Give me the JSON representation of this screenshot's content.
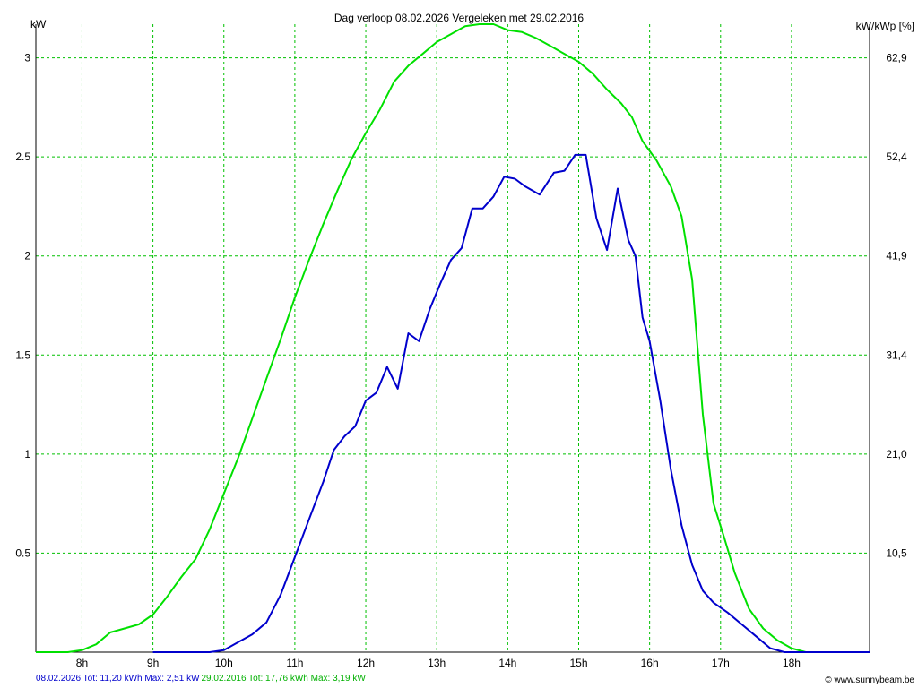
{
  "chart_data": {
    "type": "line",
    "title": "Dag  verloop 08.02.2026   Vergeleken met 29.02.2016",
    "ylabel_left": "kW",
    "ylabel_right": "kW/kWp [%]",
    "ylim": [
      0,
      3.17
    ],
    "xlim": [
      7.35,
      19.1
    ],
    "y_ticks": [
      {
        "value": 0.5,
        "label": "0.5"
      },
      {
        "value": 1,
        "label": "1"
      },
      {
        "value": 1.5,
        "label": "1.5"
      },
      {
        "value": 2,
        "label": "2"
      },
      {
        "value": 2.5,
        "label": "2.5"
      },
      {
        "value": 3,
        "label": "3"
      }
    ],
    "y2_ticks": [
      {
        "value": 0.5,
        "label": "10,5"
      },
      {
        "value": 1,
        "label": "21,0"
      },
      {
        "value": 1.5,
        "label": "31,4"
      },
      {
        "value": 2,
        "label": "41,9"
      },
      {
        "value": 2.5,
        "label": "52,4"
      },
      {
        "value": 3,
        "label": "62,9"
      }
    ],
    "x_ticks": [
      {
        "value": 8,
        "label": "8h"
      },
      {
        "value": 9,
        "label": "9h"
      },
      {
        "value": 10,
        "label": "10h"
      },
      {
        "value": 11,
        "label": "11h"
      },
      {
        "value": 12,
        "label": "12h"
      },
      {
        "value": 13,
        "label": "13h"
      },
      {
        "value": 14,
        "label": "14h"
      },
      {
        "value": 15,
        "label": "15h"
      },
      {
        "value": 16,
        "label": "16h"
      },
      {
        "value": 17,
        "label": "17h"
      },
      {
        "value": 18,
        "label": "18h"
      }
    ],
    "grid": true,
    "series": [
      {
        "color": "#00e000",
        "caption": "29.02.2016 Tot: 17,76 kWh Max: 3,19 kW",
        "x": [
          7.35,
          7.6,
          7.8,
          8.0,
          8.2,
          8.4,
          8.6,
          8.8,
          9.0,
          9.2,
          9.4,
          9.6,
          9.8,
          10.0,
          10.2,
          10.4,
          10.6,
          10.8,
          11.0,
          11.2,
          11.4,
          11.6,
          11.8,
          12.0,
          12.2,
          12.4,
          12.6,
          12.8,
          13.0,
          13.2,
          13.4,
          13.6,
          13.8,
          14.0,
          14.2,
          14.4,
          14.6,
          14.8,
          15.0,
          15.2,
          15.4,
          15.6,
          15.75,
          15.9,
          16.1,
          16.3,
          16.45,
          16.6,
          16.75,
          16.9,
          17.05,
          17.2,
          17.4,
          17.6,
          17.8,
          18.0,
          18.2,
          18.4,
          18.6,
          18.8,
          19.1
        ],
        "y": [
          0,
          0,
          0,
          0.01,
          0.04,
          0.1,
          0.12,
          0.14,
          0.19,
          0.28,
          0.38,
          0.47,
          0.62,
          0.8,
          0.98,
          1.18,
          1.38,
          1.58,
          1.79,
          1.98,
          2.16,
          2.33,
          2.49,
          2.62,
          2.74,
          2.88,
          2.96,
          3.02,
          3.08,
          3.12,
          3.16,
          3.17,
          3.17,
          3.14,
          3.13,
          3.1,
          3.06,
          3.02,
          2.98,
          2.92,
          2.84,
          2.77,
          2.7,
          2.58,
          2.48,
          2.35,
          2.2,
          1.88,
          1.2,
          0.75,
          0.58,
          0.4,
          0.22,
          0.12,
          0.06,
          0.02,
          0,
          0,
          0,
          0,
          0
        ]
      },
      {
        "color": "#0000cc",
        "caption": "08.02.2026 Tot: 11,20 kWh Max: 2,51 kW",
        "x": [
          9.0,
          9.2,
          9.4,
          9.6,
          9.8,
          10.0,
          10.2,
          10.4,
          10.6,
          10.8,
          11.0,
          11.2,
          11.4,
          11.55,
          11.7,
          11.85,
          12.0,
          12.15,
          12.3,
          12.45,
          12.6,
          12.75,
          12.9,
          13.05,
          13.2,
          13.35,
          13.5,
          13.65,
          13.8,
          13.95,
          14.1,
          14.25,
          14.45,
          14.65,
          14.8,
          14.95,
          15.1,
          15.25,
          15.4,
          15.55,
          15.7,
          15.8,
          15.9,
          16.0,
          16.15,
          16.3,
          16.45,
          16.6,
          16.75,
          16.9,
          17.1,
          17.3,
          17.5,
          17.7,
          17.9,
          18.1,
          18.3,
          18.5,
          18.7,
          19.1
        ],
        "y": [
          0,
          0,
          0,
          0,
          0,
          0.01,
          0.05,
          0.09,
          0.15,
          0.29,
          0.48,
          0.67,
          0.86,
          1.02,
          1.09,
          1.14,
          1.27,
          1.31,
          1.44,
          1.33,
          1.61,
          1.57,
          1.73,
          1.86,
          1.98,
          2.04,
          2.24,
          2.24,
          2.3,
          2.4,
          2.39,
          2.35,
          2.31,
          2.42,
          2.43,
          2.51,
          2.51,
          2.19,
          2.03,
          2.34,
          2.08,
          2.0,
          1.69,
          1.57,
          1.27,
          0.92,
          0.64,
          0.44,
          0.31,
          0.25,
          0.2,
          0.14,
          0.08,
          0.02,
          0,
          0,
          0,
          0,
          0,
          0
        ]
      }
    ],
    "watermark": "© www.sunnybeam.be"
  }
}
